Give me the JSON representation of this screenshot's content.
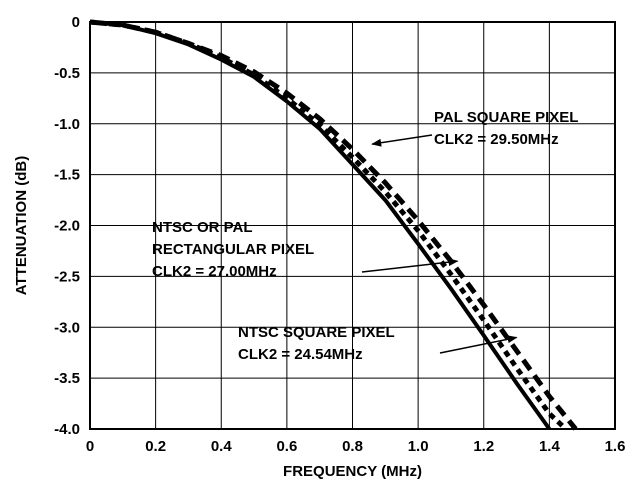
{
  "chart_data": {
    "type": "line",
    "xlabel": "FREQUENCY (MHz)",
    "ylabel": "ATTENUATION (dB)",
    "xlim": [
      0,
      1.6
    ],
    "ylim": [
      -4.0,
      0
    ],
    "grid": true,
    "x_ticks": [
      "0",
      "0.2",
      "0.4",
      "0.6",
      "0.8",
      "1.0",
      "1.2",
      "1.4",
      "1.6"
    ],
    "y_ticks": [
      "0",
      "-0.5",
      "-1.0",
      "-1.5",
      "-2.0",
      "-2.5",
      "-3.0",
      "-3.5",
      "-4.0"
    ],
    "series": [
      {
        "style": "solid",
        "points": [
          [
            0,
            0
          ],
          [
            0.1,
            -0.03
          ],
          [
            0.2,
            -0.11
          ],
          [
            0.3,
            -0.22
          ],
          [
            0.4,
            -0.37
          ],
          [
            0.5,
            -0.54
          ],
          [
            0.6,
            -0.78
          ],
          [
            0.7,
            -1.05
          ],
          [
            0.8,
            -1.4
          ],
          [
            0.9,
            -1.75
          ],
          [
            1.0,
            -2.18
          ],
          [
            1.1,
            -2.62
          ],
          [
            1.2,
            -3.08
          ],
          [
            1.3,
            -3.55
          ],
          [
            1.4,
            -4.0
          ]
        ]
      },
      {
        "style": "dotted",
        "points": [
          [
            0,
            0
          ],
          [
            0.1,
            -0.03
          ],
          [
            0.2,
            -0.1
          ],
          [
            0.3,
            -0.21
          ],
          [
            0.4,
            -0.35
          ],
          [
            0.5,
            -0.52
          ],
          [
            0.6,
            -0.75
          ],
          [
            0.7,
            -1.01
          ],
          [
            0.8,
            -1.33
          ],
          [
            0.9,
            -1.67
          ],
          [
            1.0,
            -2.05
          ],
          [
            1.1,
            -2.48
          ],
          [
            1.2,
            -2.93
          ],
          [
            1.3,
            -3.4
          ],
          [
            1.4,
            -3.85
          ],
          [
            1.45,
            -4.0
          ]
        ]
      },
      {
        "style": "dashed",
        "points": [
          [
            0,
            0
          ],
          [
            0.1,
            -0.03
          ],
          [
            0.2,
            -0.1
          ],
          [
            0.3,
            -0.21
          ],
          [
            0.4,
            -0.33
          ],
          [
            0.5,
            -0.49
          ],
          [
            0.6,
            -0.7
          ],
          [
            0.7,
            -0.95
          ],
          [
            0.8,
            -1.25
          ],
          [
            0.9,
            -1.58
          ],
          [
            1.0,
            -1.95
          ],
          [
            1.1,
            -2.35
          ],
          [
            1.2,
            -2.78
          ],
          [
            1.3,
            -3.23
          ],
          [
            1.4,
            -3.68
          ],
          [
            1.48,
            -4.0
          ]
        ]
      }
    ],
    "annotations": [
      {
        "lines": [
          "PAL SQUARE PIXEL",
          "CLK2 = 29.50MHz"
        ],
        "arrow_to": [
          0.86,
          -1.2
        ]
      },
      {
        "lines": [
          "NTSC OR PAL",
          "RECTANGULAR PIXEL",
          "CLK2 = 27.00MHz"
        ],
        "arrow_to": [
          1.12,
          -2.35
        ]
      },
      {
        "lines": [
          "NTSC SQUARE PIXEL",
          "CLK2 = 24.54MHz"
        ],
        "arrow_to": [
          1.3,
          -3.1
        ]
      }
    ]
  }
}
